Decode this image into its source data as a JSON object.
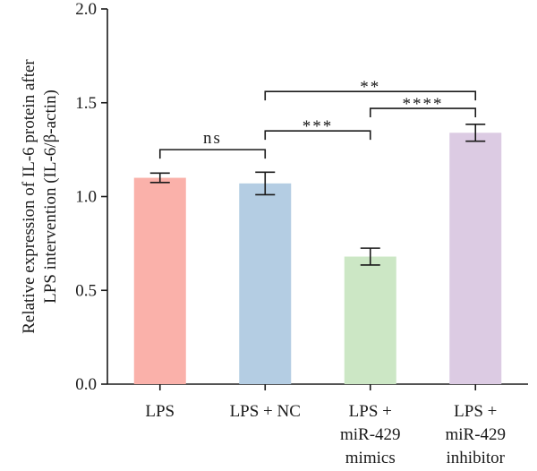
{
  "chart_data": {
    "type": "bar",
    "ylabel_lines": [
      "Relative expression of IL-6 protein after",
      "LPS intervention (IL-6/β-actin)"
    ],
    "ylim": [
      0,
      2.0
    ],
    "yticks": [
      "0.0",
      "0.5",
      "1.0",
      "1.5",
      "2.0"
    ],
    "categories": [
      [
        "LPS"
      ],
      [
        "LPS + NC"
      ],
      [
        "LPS +",
        "miR-429",
        "mimics"
      ],
      [
        "LPS +",
        "miR-429",
        "inhibitor"
      ]
    ],
    "values": [
      1.1,
      1.07,
      0.68,
      1.34
    ],
    "errors": [
      0.025,
      0.06,
      0.045,
      0.045
    ],
    "colors": [
      "#fab1aa",
      "#b4cde3",
      "#cce7c5",
      "#dccbe3"
    ],
    "significance": [
      {
        "from": 0,
        "to": 1,
        "label": "ns",
        "y": 1.25
      },
      {
        "from": 1,
        "to": 2,
        "label": "***",
        "y": 1.35
      },
      {
        "from": 2,
        "to": 3,
        "label": "****",
        "y": 1.47
      },
      {
        "from": 1,
        "to": 3,
        "label": "**",
        "y": 1.56
      }
    ],
    "grid": false,
    "legend": "none"
  }
}
